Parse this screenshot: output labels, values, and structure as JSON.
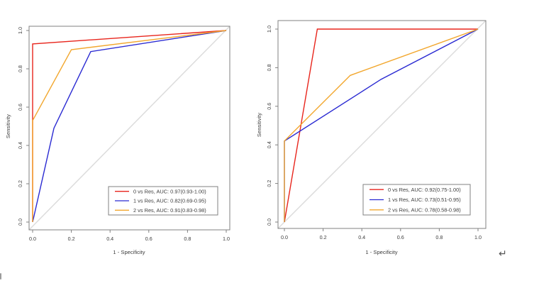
{
  "figure": {
    "background": "#ffffff",
    "artifacts": {
      "return_mark": "↵"
    }
  },
  "colors": {
    "red": "#e8251c",
    "blue": "#2a2ad2",
    "orange": "#f2a72e",
    "diagonal": "#dcdcdc",
    "frame": "#808080",
    "text": "#3d3d3d",
    "legend_background": "#ffffff"
  },
  "chart_data": [
    {
      "type": "line",
      "subtype": "roc",
      "title": "",
      "xlabel": "1 - Specificity",
      "ylabel": "Sensitivity",
      "xlim": [
        0,
        1
      ],
      "ylim": [
        0,
        1
      ],
      "x_ticks": [
        0,
        0.2,
        0.4,
        0.6,
        0.8,
        1.0
      ],
      "y_ticks": [
        0,
        0.2,
        0.4,
        0.6,
        0.8,
        1.0
      ],
      "x_tick_labels": [
        "0.0",
        "0.2",
        "0.4",
        "0.6",
        "0.8",
        "1.0"
      ],
      "y_tick_labels": [
        "0.0",
        "0.2",
        "0.4",
        "0.6",
        "0.8",
        "1.0"
      ],
      "grid": false,
      "reference_diagonal": true,
      "legend_position": "lower-right",
      "series": [
        {
          "name": "0 vs Res",
          "auc": "0.97(0.93-1.00)",
          "legend_label": "0 vs Res, AUC: 0.97(0.93-1.00)",
          "color_key": "red",
          "points": [
            [
              0,
              0
            ],
            [
              0,
              0.93
            ],
            [
              1,
              1
            ]
          ]
        },
        {
          "name": "1 vs Res",
          "auc": "0.82(0.69-0.95)",
          "legend_label": "1 vs Res, AUC: 0.82(0.69-0.95)",
          "color_key": "blue",
          "points": [
            [
              0,
              0
            ],
            [
              0.11,
              0.49
            ],
            [
              0.3,
              0.89
            ],
            [
              1,
              1
            ]
          ]
        },
        {
          "name": "2 vs Res",
          "auc": "0.91(0.83-0.98)",
          "legend_label": "2 vs Res, AUC: 0.91(0.83-0.98)",
          "color_key": "orange",
          "points": [
            [
              0,
              0
            ],
            [
              0,
              0.53
            ],
            [
              0.2,
              0.9
            ],
            [
              1,
              1
            ]
          ]
        }
      ]
    },
    {
      "type": "line",
      "subtype": "roc",
      "title": "",
      "xlabel": "1 - Specificity",
      "ylabel": "Sensitivity",
      "xlim": [
        0,
        1
      ],
      "ylim": [
        0,
        1
      ],
      "x_ticks": [
        0,
        0.2,
        0.4,
        0.6,
        0.8,
        1.0
      ],
      "y_ticks": [
        0,
        0.2,
        0.4,
        0.6,
        0.8,
        1.0
      ],
      "x_tick_labels": [
        "0.0",
        "0.2",
        "0.4",
        "0.6",
        "0.8",
        "1.0"
      ],
      "y_tick_labels": [
        "0.0",
        "0.2",
        "0.4",
        "0.6",
        "0.8",
        "1.0"
      ],
      "grid": false,
      "reference_diagonal": true,
      "legend_position": "lower-right",
      "series": [
        {
          "name": "0 vs Res",
          "auc": "0.92(0.75-1.00)",
          "legend_label": "0 vs Res, AUC: 0.92(0.75-1.00)",
          "color_key": "red",
          "points": [
            [
              0,
              0
            ],
            [
              0.17,
              1
            ],
            [
              1,
              1
            ]
          ]
        },
        {
          "name": "1 vs Res",
          "auc": "0.73(0.51-0.95)",
          "legend_label": "1 vs Res, AUC: 0.73(0.51-0.95)",
          "color_key": "blue",
          "points": [
            [
              0,
              0
            ],
            [
              0,
              0.42
            ],
            [
              0.5,
              0.74
            ],
            [
              1,
              1
            ]
          ]
        },
        {
          "name": "2 vs Res",
          "auc": "0.78(0.58-0.98)",
          "legend_label": "2 vs Res, AUC: 0.78(0.58-0.98)",
          "color_key": "orange",
          "points": [
            [
              0,
              0
            ],
            [
              0,
              0.42
            ],
            [
              0.34,
              0.76
            ],
            [
              1,
              1
            ]
          ]
        }
      ]
    }
  ]
}
